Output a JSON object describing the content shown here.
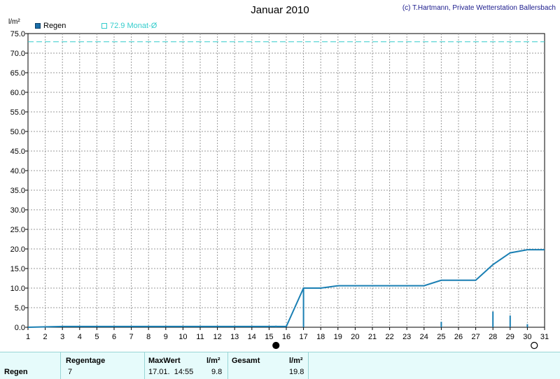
{
  "header": {
    "title": "Januar 2010",
    "copyright": "(c) T.Hartmann, Private Wetterstation Ballersbach",
    "y_unit": "l/m²"
  },
  "legend": {
    "regen": "Regen",
    "monat": "72.9 Monat-Ø"
  },
  "colors": {
    "rain": "#1a7fb3",
    "month_line": "#33cccc",
    "grid": "#9a9a9a",
    "stats_bg": "#e6fbfb"
  },
  "chart_data": {
    "type": "line",
    "title": "Januar 2010",
    "ylabel": "l/m²",
    "xlim": [
      1,
      31
    ],
    "ylim": [
      0,
      75
    ],
    "yticks": [
      0.0,
      5.0,
      10.0,
      15.0,
      20.0,
      25.0,
      30.0,
      35.0,
      40.0,
      45.0,
      50.0,
      55.0,
      60.0,
      65.0,
      70.0,
      75.0
    ],
    "xticks": [
      1,
      2,
      3,
      4,
      5,
      6,
      7,
      8,
      9,
      10,
      11,
      12,
      13,
      14,
      15,
      16,
      17,
      18,
      19,
      20,
      21,
      22,
      23,
      24,
      25,
      26,
      27,
      28,
      29,
      30,
      31
    ],
    "grid": true,
    "legend_position": "top-left",
    "series": [
      {
        "name": "Regen",
        "kind": "cumulative",
        "x": [
          1,
          3,
          16,
          17,
          18,
          19,
          20,
          21,
          22,
          23,
          24,
          25,
          26,
          27,
          28,
          29,
          30,
          31
        ],
        "y": [
          0,
          0.2,
          0.2,
          10.0,
          10.0,
          10.6,
          10.6,
          10.6,
          10.6,
          10.6,
          10.6,
          12.0,
          12.0,
          12.0,
          16.0,
          19.0,
          19.8,
          19.8
        ]
      },
      {
        "name": "Regen",
        "kind": "daily",
        "x": [
          15.4,
          17,
          25,
          28,
          29,
          30
        ],
        "y": [
          0.4,
          9.8,
          1.4,
          4.0,
          3.0,
          0.8
        ]
      },
      {
        "name": "72.9 Monat-Ø",
        "kind": "reference",
        "value": 72.9
      }
    ],
    "markers": [
      {
        "type": "new-moon",
        "x": 15.4
      },
      {
        "type": "full-moon",
        "x": 30.4
      }
    ]
  },
  "stats": {
    "row_label": "Regen",
    "regentage_label": "Regentage",
    "regentage_value": "7",
    "maxwert_label": "MaxWert",
    "maxwert_unit": "l/m²",
    "maxwert_date": "17.01.  14:55",
    "maxwert_value": "9.8",
    "gesamt_label": "Gesamt",
    "gesamt_unit": "l/m²",
    "gesamt_value": "19.8"
  }
}
